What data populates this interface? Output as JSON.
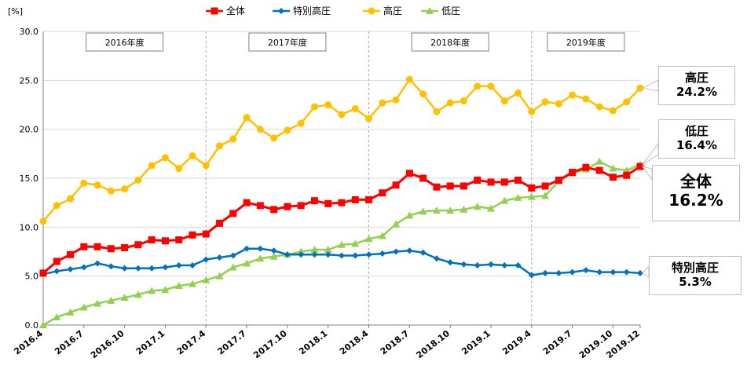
{
  "chart_data": {
    "type": "line",
    "unit_label": "[%]",
    "ylim": [
      0,
      30
    ],
    "yticks": [
      "0.0",
      "5.0",
      "10.0",
      "15.0",
      "20.0",
      "25.0",
      "30.0"
    ],
    "x": [
      "2016.4",
      "2016.5",
      "2016.6",
      "2016.7",
      "2016.8",
      "2016.9",
      "2016.10",
      "2016.11",
      "2016.12",
      "2017.1",
      "2017.2",
      "2017.3",
      "2017.4",
      "2017.5",
      "2017.6",
      "2017.7",
      "2017.8",
      "2017.9",
      "2017.10",
      "2017.11",
      "2017.12",
      "2018.1",
      "2018.2",
      "2018.3",
      "2018.4",
      "2018.5",
      "2018.6",
      "2018.7",
      "2018.8",
      "2018.9",
      "2018.10",
      "2018.11",
      "2018.12",
      "2019.1",
      "2019.2",
      "2019.3",
      "2019.4",
      "2019.5",
      "2019.6",
      "2019.7",
      "2019.8",
      "2019.9",
      "2019.10",
      "2019.11",
      "2019.12"
    ],
    "xtick_labels": [
      "2016.4",
      "2016.7",
      "2016.10",
      "2017.1",
      "2017.4",
      "2017.7",
      "2017.10",
      "2018.1",
      "2018.4",
      "2018.7",
      "2018.10",
      "2019.1",
      "2019.4",
      "2019.7",
      "2019.10",
      "2019.12"
    ],
    "fiscal_years": [
      "2016年度",
      "2017年度",
      "2018年度",
      "2019年度"
    ],
    "series": [
      {
        "name": "全体",
        "color": "#ff0000",
        "marker": "square",
        "values": [
          5.3,
          6.5,
          7.2,
          8.0,
          8.0,
          7.8,
          7.9,
          8.2,
          8.7,
          8.6,
          8.7,
          9.2,
          9.3,
          10.4,
          11.4,
          12.5,
          12.2,
          11.8,
          12.1,
          12.2,
          12.7,
          12.4,
          12.5,
          12.8,
          12.8,
          13.5,
          14.3,
          15.5,
          15.0,
          14.1,
          14.2,
          14.2,
          14.8,
          14.6,
          14.6,
          14.8,
          14.0,
          14.2,
          14.8,
          15.6,
          16.1,
          15.8,
          15.1,
          15.3,
          16.2
        ]
      },
      {
        "name": "特別高圧",
        "color": "#0070c0",
        "marker": "diamond",
        "values": [
          5.2,
          5.5,
          5.7,
          5.9,
          6.3,
          6.0,
          5.8,
          5.8,
          5.8,
          5.9,
          6.1,
          6.1,
          6.7,
          6.9,
          7.1,
          7.8,
          7.8,
          7.6,
          7.2,
          7.2,
          7.2,
          7.2,
          7.1,
          7.1,
          7.2,
          7.3,
          7.5,
          7.6,
          7.4,
          6.8,
          6.4,
          6.2,
          6.1,
          6.2,
          6.1,
          6.1,
          5.1,
          5.3,
          5.3,
          5.4,
          5.6,
          5.4,
          5.4,
          5.4,
          5.3
        ]
      },
      {
        "name": "高圧",
        "color": "#ffc000",
        "marker": "circle",
        "values": [
          10.6,
          12.2,
          12.9,
          14.5,
          14.3,
          13.7,
          13.9,
          14.8,
          16.3,
          17.1,
          16.0,
          17.3,
          16.3,
          18.3,
          19.0,
          21.2,
          20.0,
          19.1,
          19.9,
          20.6,
          22.3,
          22.5,
          21.5,
          22.1,
          21.1,
          22.7,
          23.0,
          25.1,
          23.6,
          21.8,
          22.7,
          22.9,
          24.4,
          24.4,
          22.9,
          23.7,
          21.8,
          22.8,
          22.6,
          23.5,
          23.1,
          22.3,
          21.9,
          22.8,
          24.2
        ]
      },
      {
        "name": "低圧",
        "color": "#92d050",
        "marker": "triangle",
        "values": [
          0.0,
          0.8,
          1.3,
          1.8,
          2.2,
          2.5,
          2.8,
          3.1,
          3.5,
          3.6,
          4.0,
          4.2,
          4.6,
          5.0,
          5.9,
          6.3,
          6.8,
          7.0,
          7.2,
          7.5,
          7.7,
          7.7,
          8.2,
          8.3,
          8.8,
          9.1,
          10.3,
          11.2,
          11.6,
          11.7,
          11.7,
          11.8,
          12.1,
          11.9,
          12.7,
          13.0,
          13.1,
          13.2,
          14.7,
          15.5,
          15.9,
          16.7,
          16.0,
          15.8,
          16.4
        ]
      }
    ]
  },
  "callouts": {
    "high": {
      "name": "高圧",
      "value": "24.2%"
    },
    "low": {
      "name": "低圧",
      "value": "16.4%"
    },
    "total": {
      "name": "全体",
      "value": "16.2%"
    },
    "extra": {
      "name": "特別高圧",
      "value": "5.3%"
    }
  }
}
